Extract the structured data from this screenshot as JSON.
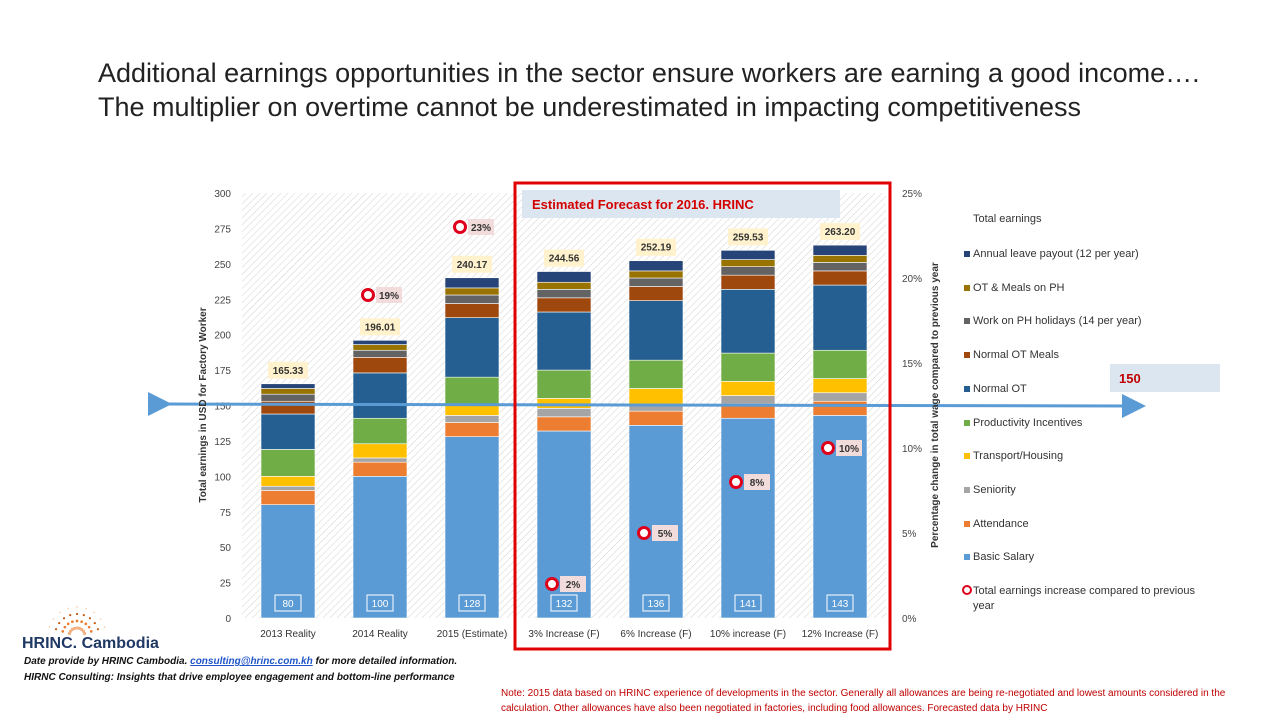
{
  "page": {
    "title": "Additional earnings opportunities in the sector ensure workers are earning a good income….  The multiplier on overtime cannot be underestimated in impacting competitiveness"
  },
  "chart_data": {
    "type": "bar",
    "stacked": true,
    "categories": [
      "2013 Reality",
      "2014 Reality",
      "2015 (Estimate)",
      "3% Increase (F)",
      "6% Increase (F)",
      "10% increase (F)",
      "12% Increase (F)"
    ],
    "ylabel": "Total earnings in USD for Factory Worker",
    "y2label": "Percentage change in total wage compared to previous year",
    "ylim": [
      0,
      300
    ],
    "y_ticks": [
      "0",
      "25",
      "50",
      "75",
      "100",
      "125",
      "150",
      "175",
      "200",
      "225",
      "250",
      "275",
      "300"
    ],
    "y2lim": [
      0,
      25
    ],
    "y2_ticks": [
      "0%",
      "5%",
      "10%",
      "15%",
      "20%",
      "25%"
    ],
    "legend_title": "Total earnings",
    "legend_position": "right",
    "series": [
      {
        "name": "Basic Salary",
        "color": "#5b9bd5",
        "values": [
          80,
          100,
          128,
          132,
          136,
          141,
          143
        ]
      },
      {
        "name": "Attendance",
        "color": "#ed7d31",
        "values": [
          10,
          10,
          10,
          10,
          10,
          10,
          10
        ]
      },
      {
        "name": "Seniority",
        "color": "#a5a5a5",
        "values": [
          3,
          3,
          5,
          6,
          5,
          6,
          6
        ]
      },
      {
        "name": "Transport/Housing",
        "color": "#ffc000",
        "values": [
          7,
          10,
          7,
          7,
          11,
          10,
          10
        ]
      },
      {
        "name": "Productivity Incentives",
        "color": "#70ad47",
        "values": [
          19,
          18,
          20,
          20,
          20,
          20,
          20
        ]
      },
      {
        "name": "Normal OT",
        "color": "#255e91",
        "values": [
          25,
          32,
          42,
          41,
          42,
          45,
          46
        ]
      },
      {
        "name": "Normal OT Meals",
        "color": "#9e480e",
        "values": [
          9,
          11,
          10,
          10,
          10,
          10,
          10
        ]
      },
      {
        "name": "Work on PH holidays (14 per year)",
        "color": "#636363",
        "values": [
          5,
          5,
          6,
          6,
          6,
          6,
          6
        ]
      },
      {
        "name": "OT & Meals on PH",
        "color": "#997300",
        "values": [
          4,
          4,
          5,
          5,
          5,
          5,
          5
        ]
      },
      {
        "name": "Annual leave payout (12 per year)",
        "color": "#264478",
        "values": [
          3.33,
          3.01,
          7.17,
          7.56,
          7.19,
          6.53,
          7.2
        ]
      }
    ],
    "base_labels": [
      "80",
      "100",
      "128",
      "132",
      "136",
      "141",
      "143"
    ],
    "totals": [
      "165.33",
      "196.01",
      "240.17",
      "244.56",
      "252.19",
      "259.53",
      "263.20"
    ],
    "increase_series": {
      "name": "Total earnings increase compared to previous year",
      "values": [
        null,
        19,
        23,
        2,
        5,
        8,
        10
      ],
      "labels": [
        "",
        "19%",
        "23%",
        "2%",
        "5%",
        "8%",
        "10%"
      ]
    },
    "reference_line": {
      "value": 150,
      "label": "150"
    },
    "forecast_box_label": "Estimated Forecast for 2016. HRINC",
    "grid": false
  },
  "logo": {
    "name": "HRINC",
    "suffix": ". Cambodia"
  },
  "footer": {
    "line1_prefix": "Date provide  by HRINC Cambodia.",
    "email": "consulting@hrinc.com.kh",
    "line1_suffix": "for more detailed information.",
    "line2": "HIRNC Consulting:  Insights that drive employee engagement and bottom-line performance"
  },
  "note": "Note:  2015 data based on HRINC experience of developments in the sector.  Generally all allowances are being re-negotiated and lowest amounts considered in the calculation.  Other allowances have also been negotiated in factories, including food allowances.  Forecasted data by HRINC",
  "colors": {
    "forecast_border": "#e00000",
    "arrow": "#5b9bd5",
    "marker": "#e0001b",
    "label_bg": "#fff2cc"
  }
}
